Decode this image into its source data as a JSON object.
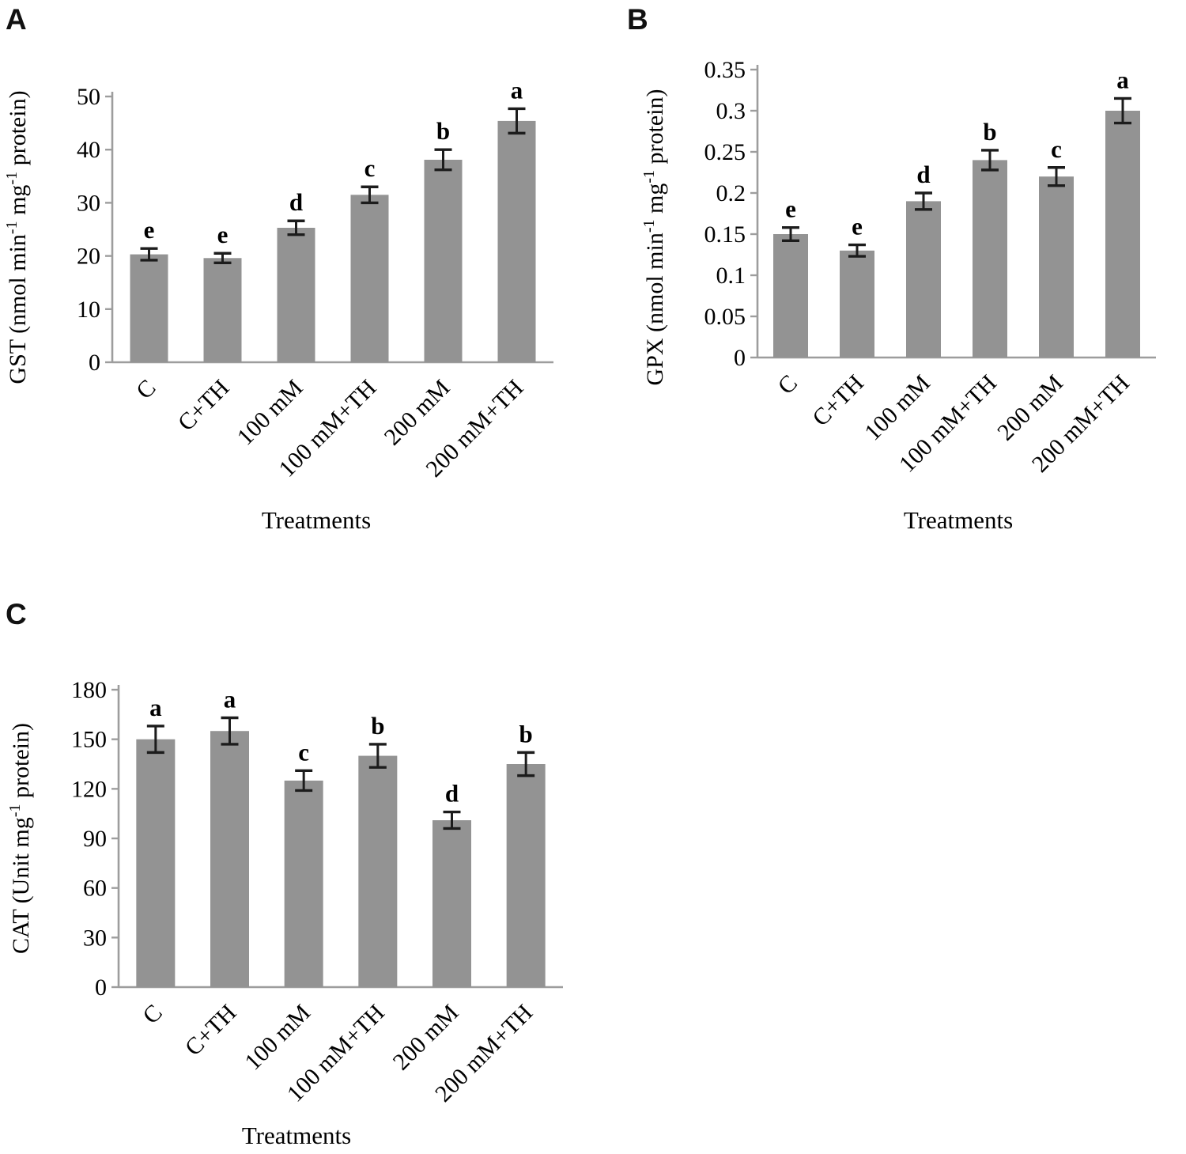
{
  "colors": {
    "bar_fill": "#939393",
    "axis_line": "#9d9d9d",
    "error_bar": "#1c1c1c",
    "text": "#000000"
  },
  "panels": [
    {
      "label": "A"
    },
    {
      "label": "B"
    },
    {
      "label": "C"
    }
  ],
  "chart_data": [
    {
      "type": "bar",
      "title": "",
      "ylabel": "GST (nmol min^-1 mg^-1 protein)",
      "xlabel": "Treatments",
      "categories": [
        "C",
        "C+TH",
        "100 mM",
        "100 mM+TH",
        "200 mM",
        "200 mM+TH"
      ],
      "values": [
        20.3,
        19.6,
        25.3,
        31.5,
        38.1,
        45.4
      ],
      "errors": [
        1.1,
        0.9,
        1.3,
        1.5,
        1.9,
        2.3
      ],
      "sig_letters": [
        "e",
        "e",
        "d",
        "c",
        "b",
        "a"
      ],
      "ylim": [
        0,
        50
      ],
      "yticks": [
        0,
        10,
        20,
        30,
        40,
        50
      ],
      "ytick_labels": [
        "0",
        "10",
        "20",
        "30",
        "40",
        "50"
      ],
      "grid": false,
      "legend": null
    },
    {
      "type": "bar",
      "title": "",
      "ylabel": "GPX (nmol min^-1 mg^-1 protein)",
      "xlabel": "Treatments",
      "categories": [
        "C",
        "C+TH",
        "100 mM",
        "100 mM+TH",
        "200 mM",
        "200 mM+TH"
      ],
      "values": [
        0.15,
        0.13,
        0.19,
        0.24,
        0.22,
        0.3
      ],
      "errors": [
        0.008,
        0.007,
        0.01,
        0.012,
        0.011,
        0.015
      ],
      "sig_letters": [
        "e",
        "e",
        "d",
        "b",
        "c",
        "a"
      ],
      "ylim": [
        0,
        0.35
      ],
      "yticks": [
        0,
        0.05,
        0.1,
        0.15,
        0.2,
        0.25,
        0.3,
        0.35
      ],
      "ytick_labels": [
        "0",
        "0.05",
        "0.1",
        "0.15",
        "0.2",
        "0.25",
        "0.3",
        "0.35"
      ],
      "grid": false,
      "legend": null
    },
    {
      "type": "bar",
      "title": "",
      "ylabel": "CAT (Unit mg^-1 protein)",
      "xlabel": "Treatments",
      "categories": [
        "C",
        "C+TH",
        "100 mM",
        "100 mM+TH",
        "200 mM",
        "200 mM+TH"
      ],
      "values": [
        150,
        155,
        125,
        140,
        101,
        135
      ],
      "errors": [
        8,
        8,
        6,
        7,
        5,
        7
      ],
      "sig_letters": [
        "a",
        "a",
        "c",
        "b",
        "d",
        "b"
      ],
      "ylim": [
        0,
        180
      ],
      "yticks": [
        0,
        30,
        60,
        90,
        120,
        150,
        180
      ],
      "ytick_labels": [
        "0",
        "30",
        "60",
        "90",
        "120",
        "150",
        "180"
      ],
      "grid": false,
      "legend": null
    }
  ]
}
